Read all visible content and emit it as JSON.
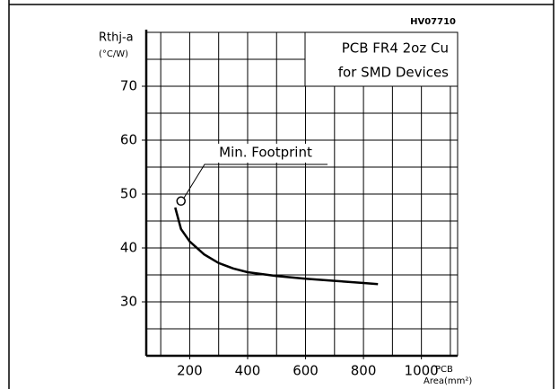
{
  "chart_data": {
    "type": "line",
    "code": "HV07710",
    "ylabel": "Rthj-a",
    "yunit": "(°C/W)",
    "xlabel": "PCB",
    "xunit": "Area(mm²)",
    "legend_lines": [
      "PCB FR4 2oz Cu",
      "for SMD Devices"
    ],
    "annotation": "Min. Footprint",
    "annotation_point": {
      "x": 170,
      "y": 48.7
    },
    "x": [
      150,
      170,
      200,
      250,
      300,
      350,
      400,
      500,
      600,
      700,
      800,
      850
    ],
    "series": [
      {
        "color": "#000000",
        "values": [
          47.5,
          43.5,
          41.2,
          38.8,
          37.2,
          36.2,
          35.5,
          34.8,
          34.3,
          33.9,
          33.5,
          33.3
        ]
      }
    ],
    "xlim": [
      50,
      1125
    ],
    "ylim": [
      20,
      80
    ],
    "xticks": [
      200,
      400,
      600,
      800,
      1000
    ],
    "yticks": [
      30,
      40,
      50,
      60,
      70
    ],
    "xgrid": [
      100,
      200,
      300,
      400,
      500,
      600,
      700,
      800,
      900,
      1000,
      1100
    ],
    "ygrid": [
      25,
      30,
      35,
      40,
      45,
      50,
      55,
      60,
      65,
      70,
      75
    ],
    "grid": true
  }
}
